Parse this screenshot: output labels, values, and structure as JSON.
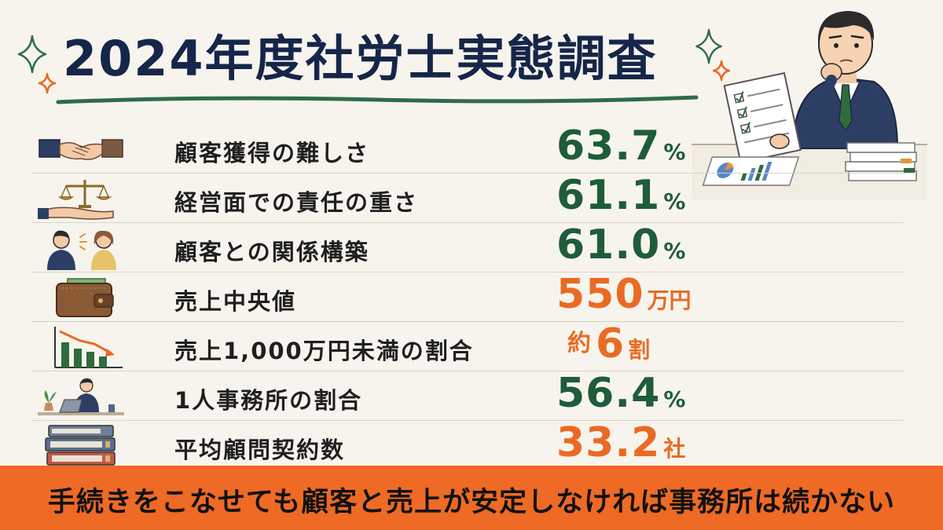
{
  "title": "2024年度社労士実態調査",
  "colors": {
    "background": "#f7f4ed",
    "title": "#15264a",
    "green": "#1f5c3a",
    "orange": "#ea6a24",
    "footer": "#ee6a25",
    "underline": "#2e6b46"
  },
  "rows": [
    {
      "icon": "handshake-icon",
      "label": "顧客獲得の難しさ",
      "prefix": "",
      "value": "63.7",
      "unit": "%",
      "color": "green"
    },
    {
      "icon": "scales-icon",
      "label": "経営面での責任の重さ",
      "prefix": "",
      "value": "61.1",
      "unit": "%",
      "color": "green"
    },
    {
      "icon": "conversation-icon",
      "label": "顧客との関係構築",
      "prefix": "",
      "value": "61.0",
      "unit": "%",
      "color": "green"
    },
    {
      "icon": "wallet-icon",
      "label": "売上中央値",
      "prefix": "",
      "value": "550",
      "unit": "万円",
      "color": "orange"
    },
    {
      "icon": "declining-chart-icon",
      "label": "売上1,000万円未満の割合",
      "prefix": "約",
      "value": "6",
      "unit": "割",
      "color": "orange"
    },
    {
      "icon": "solo-office-icon",
      "label": "1人事務所の割合",
      "prefix": "",
      "value": "56.4",
      "unit": "%",
      "color": "green"
    },
    {
      "icon": "binders-icon",
      "label": "平均顧問契約数",
      "prefix": "",
      "value": "33.2",
      "unit": "社",
      "color": "orange"
    }
  ],
  "footer": {
    "text": "手続きをこなせても顧客と売上が安定しなければ事務所は続かない"
  }
}
